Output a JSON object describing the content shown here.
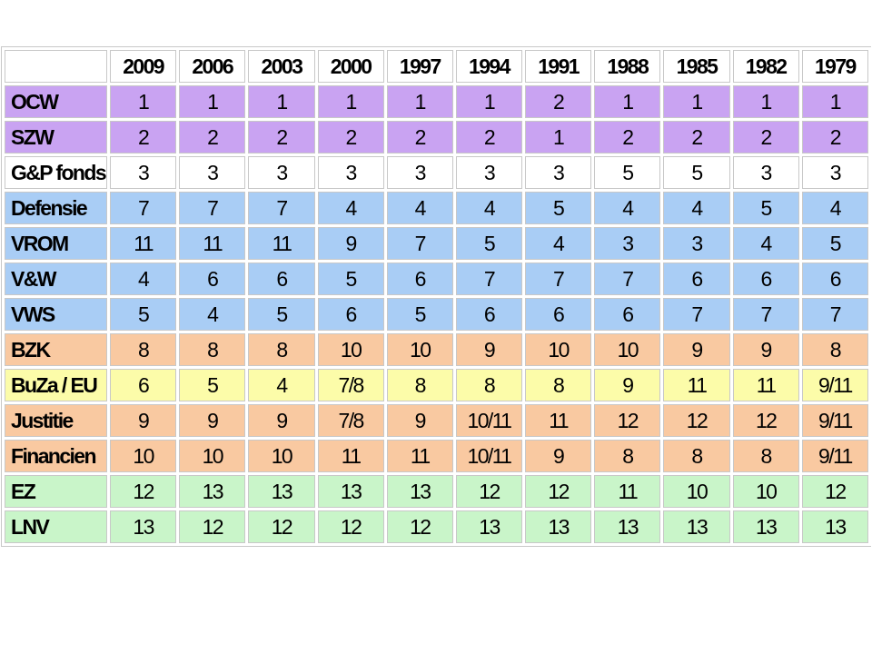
{
  "table": {
    "columns": [
      2009,
      2006,
      2003,
      2000,
      1997,
      1994,
      1991,
      1988,
      1985,
      1982,
      1979
    ],
    "rows": [
      {
        "label": "OCW",
        "color": "#c9a3f2",
        "cells": [
          1,
          1,
          1,
          1,
          1,
          1,
          2,
          1,
          1,
          1,
          1
        ]
      },
      {
        "label": "SZW",
        "color": "#c9a3f2",
        "cells": [
          2,
          2,
          2,
          2,
          2,
          2,
          1,
          2,
          2,
          2,
          2
        ]
      },
      {
        "label": "G&P fonds",
        "color": "#ffffff",
        "cells": [
          3,
          3,
          3,
          3,
          3,
          3,
          3,
          5,
          5,
          3,
          3
        ]
      },
      {
        "label": "Defensie",
        "color": "#a9cdf5",
        "cells": [
          7,
          7,
          7,
          4,
          4,
          4,
          5,
          4,
          4,
          5,
          4
        ]
      },
      {
        "label": "VROM",
        "color": "#a9cdf5",
        "cells": [
          11,
          11,
          11,
          9,
          7,
          5,
          4,
          3,
          3,
          4,
          5
        ]
      },
      {
        "label": "V&W",
        "color": "#a9cdf5",
        "cells": [
          4,
          6,
          6,
          5,
          6,
          7,
          7,
          7,
          6,
          6,
          6
        ]
      },
      {
        "label": "VWS",
        "color": "#a9cdf5",
        "cells": [
          5,
          4,
          5,
          6,
          5,
          6,
          6,
          6,
          7,
          7,
          7
        ]
      },
      {
        "label": "BZK",
        "color": "#f9c9a1",
        "cells": [
          8,
          8,
          8,
          10,
          10,
          9,
          10,
          10,
          9,
          9,
          8
        ]
      },
      {
        "label": "BuZa / EU",
        "color": "#fcfca9",
        "cells": [
          6,
          5,
          4,
          "7/8",
          8,
          8,
          8,
          9,
          11,
          11,
          "9/11"
        ]
      },
      {
        "label": "Justitie",
        "color": "#f9c9a1",
        "cells": [
          9,
          9,
          9,
          "7/8",
          9,
          "10/11",
          11,
          12,
          12,
          12,
          "9/11"
        ]
      },
      {
        "label": "Financien",
        "color": "#f9c9a1",
        "cells": [
          10,
          10,
          10,
          11,
          11,
          "10/11",
          9,
          8,
          8,
          8,
          "9/11"
        ]
      },
      {
        "label": "EZ",
        "color": "#c9f5c9",
        "cells": [
          12,
          13,
          13,
          13,
          13,
          12,
          12,
          11,
          10,
          10,
          12
        ]
      },
      {
        "label": "LNV",
        "color": "#c9f5c9",
        "cells": [
          13,
          12,
          12,
          12,
          12,
          13,
          13,
          13,
          13,
          13,
          13
        ]
      }
    ]
  }
}
